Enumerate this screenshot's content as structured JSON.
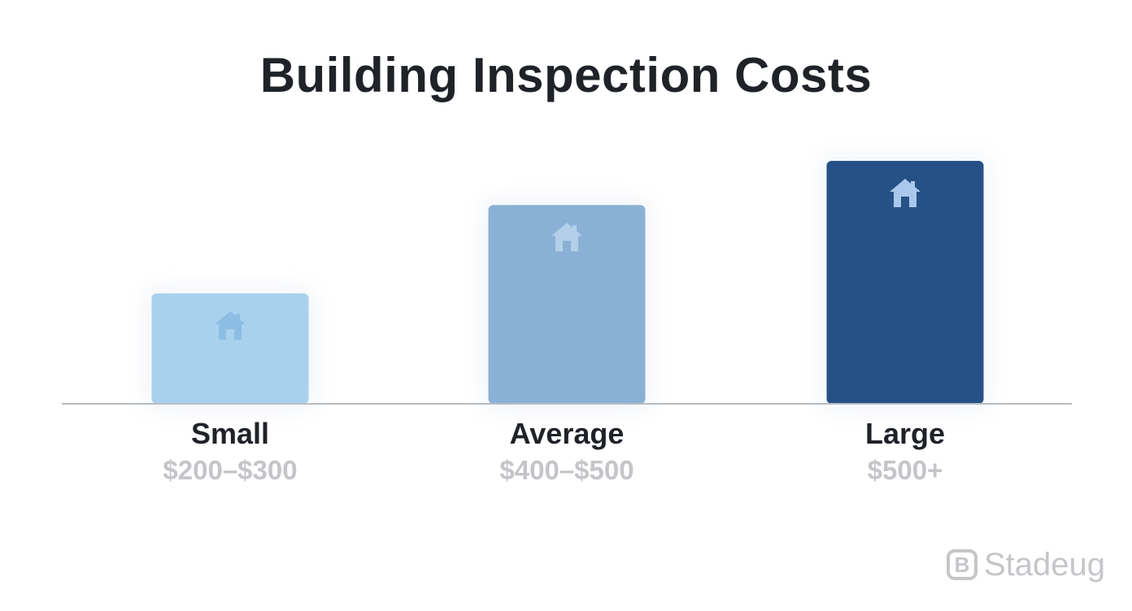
{
  "colors": {
    "background": "#ffffff",
    "title": "#1f2227",
    "category_label": "#1f2227",
    "value_label": "#c3c5c8",
    "baseline": "#b7bdc2",
    "watermark": "#c4c6c9"
  },
  "watermark": {
    "badge_letter": "B",
    "text": "Stadeug"
  },
  "chart_data": {
    "type": "bar",
    "title": "Building Inspection Costs",
    "xlabel": "",
    "ylabel": "",
    "ylim": [
      0,
      550
    ],
    "grid": false,
    "legend": "none",
    "bar_icon": "house-icon",
    "categories": [
      "Small",
      "Average",
      "Large"
    ],
    "value_labels": [
      "$200–$300",
      "$400–$500",
      "$500+"
    ],
    "values": [
      250,
      450,
      550
    ],
    "bar_colors": [
      "#a9d1ee",
      "#8ab1d5",
      "#265186"
    ],
    "icon_colors": [
      "#8dbde3",
      "#b3d0ea",
      "#a9c8ec"
    ]
  }
}
